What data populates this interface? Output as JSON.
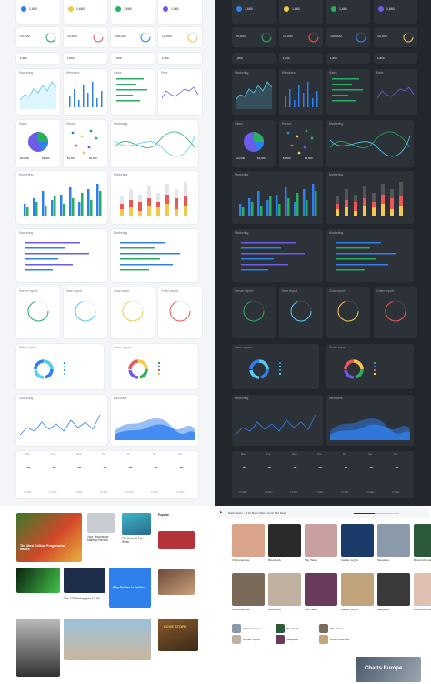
{
  "colors": {
    "blue": "#2f80ed",
    "green": "#27ae60",
    "yellow": "#f2c94c",
    "red": "#eb5757",
    "purple": "#6c5ce7",
    "cyan": "#56ccf2",
    "orange": "#f2994a",
    "lime": "#8bc34a"
  },
  "light": {
    "stat_row1": [
      "1,660",
      "1,660",
      "1,660",
      "1,660"
    ],
    "stat_row2": [
      "20,000",
      "10,000",
      "100,000",
      "10,000"
    ],
    "chart_titles": [
      "Marketing",
      "Members",
      "Sales",
      "Rate",
      "Sales",
      "Report",
      "Marketing",
      "Marketing",
      "Marketing",
      "Marketing",
      "Marketing"
    ],
    "report_titles": [
      "Server report",
      "Sale report",
      "Goal report",
      "Order report"
    ],
    "donut_titles": [
      "Sales report",
      "Order report"
    ],
    "stat_values": [
      "$13,000",
      "$3,000",
      "$1,500",
      "$3,000"
    ],
    "stat_labels": [
      "Target",
      "Last Month"
    ],
    "weekdays": [
      "Mon",
      "Tue",
      "Wed",
      "Thu",
      "Fri",
      "Sat",
      "Sun"
    ],
    "temps": [
      "27 Max",
      "27 Max",
      "27 Max",
      "27 Max",
      "27 Max",
      "27 Max",
      "27 Max"
    ]
  },
  "dark": {
    "stat_row1": [
      "1,660",
      "1,660",
      "1,660",
      "1,660"
    ],
    "stat_row2": [
      "20,000",
      "10,000",
      "100,000",
      "10,000"
    ],
    "chart_titles": [
      "Marketing",
      "Members",
      "Sales",
      "Rate",
      "Sales",
      "Report",
      "Marketing",
      "Marketing",
      "Marketing",
      "Marketing",
      "Marketing"
    ],
    "report_titles": [
      "Server report",
      "Sale report",
      "Goal report",
      "Order report"
    ],
    "donut_titles": [
      "Sales report",
      "Order report"
    ],
    "weekdays": [
      "Mon",
      "Tue",
      "Wed",
      "Thu",
      "Fri",
      "Sat",
      "Sun"
    ],
    "temps": [
      "27 Max",
      "27 Max",
      "27 Max",
      "27 Max",
      "27 Max",
      "27 Max",
      "27 Max"
    ]
  },
  "news": {
    "headline_main": "The Most Critical Progressive Makes",
    "headline_2": "Your Technology Makeup Review",
    "headline_3": "The Best Of The Week",
    "headline_4": "The 120 Photographs Of All",
    "headline_5": "Why Studies In Fashion",
    "headline_6": "Popular",
    "cover_text": "LOVE STORY"
  },
  "music": {
    "player_text": "Robin Rewin - \"A 10 Mogur Wild & Hunt\" Bird Steel",
    "track_labels": [
      "Charts Europe",
      "Bloodwork",
      "The Talent",
      "Garden Lights",
      "Sleepless",
      "Brown Mountain"
    ],
    "cover_title": "Charts Europe"
  }
}
